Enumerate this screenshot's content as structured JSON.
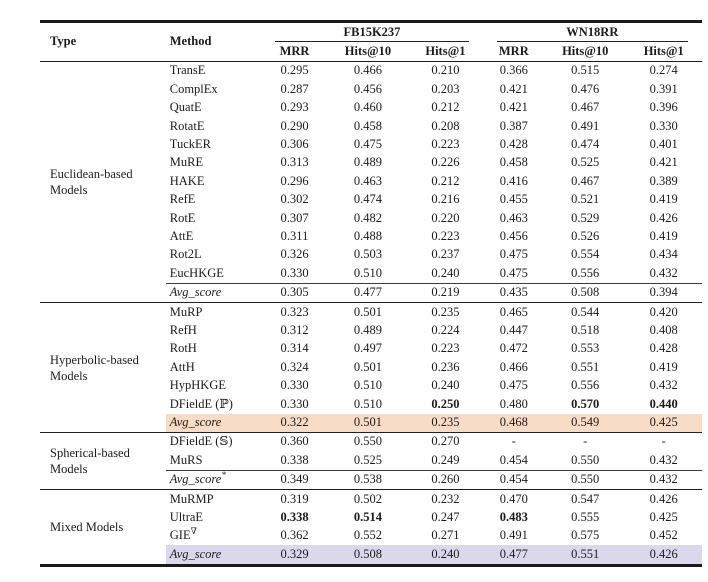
{
  "page": {
    "background": "#ffffff"
  },
  "colors": {
    "peach_highlight": "#f8dcc5",
    "lavender_highlight": "#dbd8ec",
    "rule": "#1a1a1a",
    "text": "#1b1b1b"
  },
  "table": {
    "headers": {
      "type": "Type",
      "method": "Method",
      "group_fb": "FB15K237",
      "group_wn": "WN18RR",
      "metric_cols": [
        "MRR",
        "Hits@10",
        "Hits@1",
        "MRR",
        "Hits@10",
        "Hits@1"
      ]
    },
    "sections": [
      {
        "type_label": "Euclidean-based Models",
        "divider": "none",
        "rows": [
          {
            "method": "TransE",
            "values": [
              "0.295",
              "0.466",
              "0.210",
              "0.366",
              "0.515",
              "0.274"
            ]
          },
          {
            "method": "ComplEx",
            "values": [
              "0.287",
              "0.456",
              "0.203",
              "0.421",
              "0.476",
              "0.391"
            ]
          },
          {
            "method": "QuatE",
            "values": [
              "0.293",
              "0.460",
              "0.212",
              "0.421",
              "0.467",
              "0.396"
            ]
          },
          {
            "method": "RotatE",
            "values": [
              "0.290",
              "0.458",
              "0.208",
              "0.387",
              "0.491",
              "0.330"
            ]
          },
          {
            "method": "TuckER",
            "values": [
              "0.306",
              "0.475",
              "0.223",
              "0.428",
              "0.474",
              "0.401"
            ]
          },
          {
            "method": "MuRE",
            "values": [
              "0.313",
              "0.489",
              "0.226",
              "0.458",
              "0.525",
              "0.421"
            ]
          },
          {
            "method": "HAKE",
            "values": [
              "0.296",
              "0.463",
              "0.212",
              "0.416",
              "0.467",
              "0.389"
            ]
          },
          {
            "method": "RefE",
            "values": [
              "0.302",
              "0.474",
              "0.216",
              "0.455",
              "0.521",
              "0.419"
            ]
          },
          {
            "method": "RotE",
            "values": [
              "0.307",
              "0.482",
              "0.220",
              "0.463",
              "0.529",
              "0.426"
            ]
          },
          {
            "method": "AttE",
            "values": [
              "0.311",
              "0.488",
              "0.223",
              "0.456",
              "0.526",
              "0.419"
            ]
          },
          {
            "method": "Rot2L",
            "values": [
              "0.326",
              "0.503",
              "0.237",
              "0.475",
              "0.554",
              "0.434"
            ]
          },
          {
            "method": "EucHKGE",
            "values": [
              "0.330",
              "0.510",
              "0.240",
              "0.475",
              "0.556",
              "0.432"
            ]
          },
          {
            "method": "Avg_score",
            "italic": true,
            "rule_above": true,
            "values": [
              "0.305",
              "0.477",
              "0.219",
              "0.435",
              "0.508",
              "0.394"
            ]
          }
        ]
      },
      {
        "type_label": "Hyperbolic-based Models",
        "divider": "thin",
        "rows": [
          {
            "method": "MuRP",
            "values": [
              "0.323",
              "0.501",
              "0.235",
              "0.465",
              "0.544",
              "0.420"
            ]
          },
          {
            "method": "RefH",
            "values": [
              "0.312",
              "0.489",
              "0.224",
              "0.447",
              "0.518",
              "0.408"
            ]
          },
          {
            "method": "RotH",
            "values": [
              "0.314",
              "0.497",
              "0.223",
              "0.472",
              "0.553",
              "0.428"
            ]
          },
          {
            "method": "AttH",
            "values": [
              "0.324",
              "0.501",
              "0.236",
              "0.466",
              "0.551",
              "0.419"
            ]
          },
          {
            "method": "HypHKGE",
            "values": [
              "0.330",
              "0.510",
              "0.240",
              "0.475",
              "0.556",
              "0.432"
            ]
          },
          {
            "method": "DFieldE (ℙ)",
            "bold": [
              2,
              4,
              5
            ],
            "values": [
              "0.330",
              "0.510",
              "0.250",
              "0.480",
              "0.570",
              "0.440"
            ]
          },
          {
            "method": "Avg_score",
            "italic": true,
            "highlight": "peach",
            "values": [
              "0.322",
              "0.501",
              "0.235",
              "0.468",
              "0.549",
              "0.425"
            ]
          }
        ]
      },
      {
        "type_label": "Spherical-based Models",
        "divider": "thin",
        "rows": [
          {
            "method": "DFieldE (𝕊)",
            "values": [
              "0.360",
              "0.550",
              "0.270",
              "-",
              "-",
              "-"
            ]
          },
          {
            "method": "MuRS",
            "values": [
              "0.338",
              "0.525",
              "0.249",
              "0.454",
              "0.550",
              "0.432"
            ]
          },
          {
            "method": "Avg_score",
            "sup": "*",
            "italic": true,
            "rule_above": true,
            "values": [
              "0.349",
              "0.538",
              "0.260",
              "0.454",
              "0.550",
              "0.432"
            ]
          }
        ]
      },
      {
        "type_label": "Mixed Models",
        "divider": "thick",
        "rows": [
          {
            "method": "MuRMP",
            "values": [
              "0.319",
              "0.502",
              "0.232",
              "0.470",
              "0.547",
              "0.426"
            ]
          },
          {
            "method": "UltraE",
            "bold": [
              0,
              1,
              3
            ],
            "values": [
              "0.338",
              "0.514",
              "0.247",
              "0.483",
              "0.555",
              "0.425"
            ]
          },
          {
            "method": "GIE",
            "sup": "∇",
            "values": [
              "0.362",
              "0.552",
              "0.271",
              "0.491",
              "0.575",
              "0.452"
            ]
          },
          {
            "method": "Avg_score",
            "italic": true,
            "highlight": "lavender",
            "values": [
              "0.329",
              "0.508",
              "0.240",
              "0.477",
              "0.551",
              "0.426"
            ]
          }
        ]
      }
    ]
  }
}
